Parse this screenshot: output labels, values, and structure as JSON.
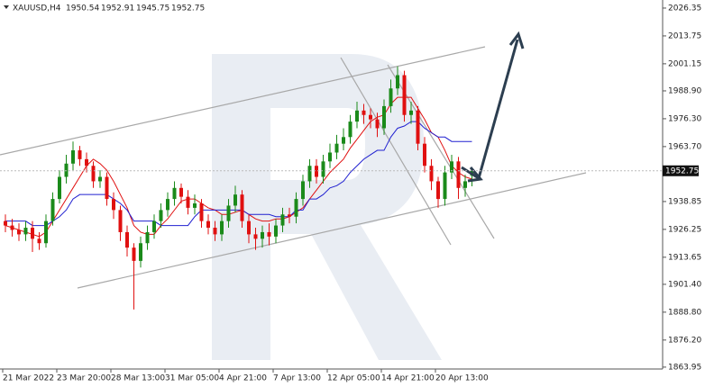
{
  "chart_data": {
    "type": "candlestick",
    "title": "XAUUSD,H4",
    "categories": [
      "21 Mar 2022",
      null,
      null,
      null,
      null,
      null,
      null,
      null,
      "23 Mar 20:00",
      null,
      null,
      null,
      null,
      null,
      null,
      null,
      "28 Mar 13:00",
      null,
      null,
      null,
      null,
      null,
      null,
      null,
      "31 Mar 05:00",
      null,
      null,
      null,
      null,
      null,
      null,
      null,
      "4 Apr 21:00",
      null,
      null,
      null,
      null,
      null,
      null,
      null,
      "7 Apr 13:00",
      null,
      null,
      null,
      null,
      null,
      null,
      null,
      "12 Apr 05:00",
      null,
      null,
      null,
      null,
      null,
      null,
      null,
      "14 Apr 21:00",
      null,
      null,
      null,
      null,
      null,
      null,
      null,
      "20 Apr 13:00",
      null,
      null,
      null,
      null,
      null
    ],
    "open": [
      1930,
      1928,
      1926,
      1924,
      1927,
      1922,
      1920,
      1930,
      1940,
      1950,
      1956,
      1962,
      1958,
      1955,
      1948,
      1950,
      1940,
      1935,
      1925,
      1918,
      1912,
      1920,
      1925,
      1930,
      1935,
      1940,
      1945,
      1941,
      1936,
      1938,
      1930,
      1927,
      1924,
      1930,
      1937,
      1942,
      1930,
      1924,
      1922,
      1925,
      1923,
      1928,
      1933,
      1932,
      1940,
      1948,
      1955,
      1950,
      1957,
      1961,
      1965,
      1968,
      1975,
      1980,
      1978,
      1976,
      1972,
      1982,
      1990,
      1996,
      1978,
      1980,
      1965,
      1955,
      1948,
      1940,
      1952,
      1957,
      1945,
      1950.54
    ],
    "high": [
      1933,
      1931,
      1929,
      1930,
      1930,
      1925,
      1933,
      1943,
      1953,
      1960,
      1966,
      1964,
      1961,
      1957,
      1953,
      1952,
      1943,
      1937,
      1928,
      1920,
      1923,
      1928,
      1933,
      1938,
      1943,
      1948,
      1947,
      1944,
      1942,
      1940,
      1933,
      1930,
      1933,
      1940,
      1946,
      1944,
      1933,
      1927,
      1928,
      1929,
      1931,
      1936,
      1936,
      1943,
      1951,
      1958,
      1958,
      1960,
      1965,
      1969,
      1972,
      1978,
      1984,
      1983,
      1981,
      1979,
      1985,
      1994,
      2000,
      1998,
      1984,
      1982,
      1968,
      1958,
      1950,
      1955,
      1960,
      1959,
      1951,
      1952.91
    ],
    "low": [
      1925,
      1923,
      1921,
      1921,
      1916,
      1917,
      1918,
      1928,
      1938,
      1947,
      1953,
      1955,
      1952,
      1945,
      1945,
      1937,
      1931,
      1921,
      1914,
      1890,
      1909,
      1917,
      1922,
      1927,
      1932,
      1937,
      1938,
      1933,
      1933,
      1927,
      1924,
      1921,
      1921,
      1927,
      1934,
      1927,
      1920,
      1917,
      1918,
      1919,
      1920,
      1925,
      1929,
      1929,
      1937,
      1945,
      1947,
      1947,
      1954,
      1958,
      1962,
      1965,
      1972,
      1974,
      1972,
      1968,
      1969,
      1979,
      1987,
      1975,
      1974,
      1962,
      1952,
      1944,
      1936,
      1937,
      1949,
      1940,
      1941,
      1945.75
    ],
    "close": [
      1928,
      1926,
      1924,
      1927,
      1922,
      1920,
      1930,
      1940,
      1950,
      1956,
      1962,
      1958,
      1955,
      1948,
      1950,
      1940,
      1935,
      1925,
      1918,
      1912,
      1920,
      1925,
      1930,
      1935,
      1940,
      1945,
      1941,
      1936,
      1938,
      1930,
      1927,
      1924,
      1930,
      1937,
      1942,
      1930,
      1924,
      1922,
      1925,
      1923,
      1928,
      1933,
      1932,
      1940,
      1948,
      1955,
      1950,
      1957,
      1961,
      1965,
      1968,
      1975,
      1980,
      1978,
      1976,
      1972,
      1982,
      1990,
      1996,
      1978,
      1980,
      1965,
      1955,
      1948,
      1940,
      1952,
      1957,
      1945,
      1948,
      1952.75
    ],
    "up_color": "#1a8a1a",
    "down_color": "#e01010",
    "lines": [
      {
        "color": "#e01010",
        "values": [
          1928,
          1927,
          1926,
          1925,
          1924,
          1923,
          1925,
          1930,
          1935,
          1940,
          1945,
          1950,
          1955,
          1958,
          1956,
          1953,
          1948,
          1942,
          1936,
          1928,
          1925,
          1924,
          1924,
          1928,
          1931,
          1935,
          1939,
          1940,
          1940,
          1938,
          1936,
          1935,
          1933,
          1933,
          1934,
          1935,
          1933,
          1931,
          1930,
          1930,
          1931,
          1931,
          1932,
          1934,
          1936,
          1940,
          1944,
          1948,
          1952,
          1955,
          1958,
          1963,
          1967,
          1971,
          1975,
          1977,
          1978,
          1983,
          1986,
          1986,
          1986,
          1981,
          1976,
          1970,
          1968,
          1962,
          1955,
          1952,
          1950,
          1949
        ]
      },
      {
        "color": "#2020d0",
        "values": [
          1930,
          1930,
          1930,
          1930,
          1928,
          1928,
          1928,
          1930,
          1932,
          1935,
          1940,
          1942,
          1942,
          1942,
          1942,
          1942,
          1940,
          1938,
          1935,
          1930,
          1930,
          1930,
          1930,
          1928,
          1928,
          1928,
          1928,
          1928,
          1932,
          1935,
          1935,
          1935,
          1935,
          1935,
          1935,
          1935,
          1933,
          1933,
          1933,
          1933,
          1932,
          1932,
          1932,
          1935,
          1935,
          1940,
          1940,
          1942,
          1945,
          1946,
          1948,
          1952,
          1955,
          1958,
          1960,
          1962,
          1962,
          1968,
          1972,
          1973,
          1975,
          1975,
          1972,
          1970,
          1968,
          1968,
          1966,
          1966,
          1966,
          1966
        ]
      }
    ],
    "ylim": [
      1863.1,
      2030
    ],
    "yticks": [
      2026.35,
      2013.75,
      2001.15,
      {
        "value": 1988.9,
        "label": "1988.90"
      },
      {
        "value": 1976.3,
        "label": "1976.30"
      },
      {
        "value": 1963.7,
        "label": "1963.70"
      },
      1938.85,
      1926.25,
      1913.65,
      {
        "value": 1901.4,
        "label": "1901.40"
      },
      {
        "value": 1888.8,
        "label": "1888.80"
      },
      {
        "value": 1876.2,
        "label": "1876.20"
      },
      1863.95
    ]
  }
}
